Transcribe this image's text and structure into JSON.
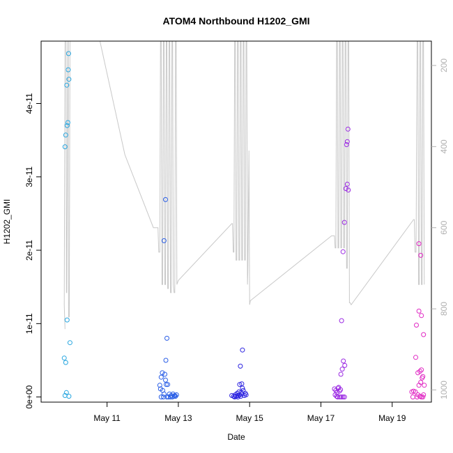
{
  "chart_data": {
    "type": "scatter",
    "title": "ATOM4 Northbound H1202_GMI",
    "xlabel": "Date",
    "ylabel": "H1202_GMI",
    "x_ticks": [
      "May 11",
      "May 13",
      "May 15",
      "May 17",
      "May 19"
    ],
    "x_tick_days": [
      11,
      13,
      15,
      17,
      19
    ],
    "xlim": [
      9.15,
      20.1
    ],
    "ylim": [
      -7e-13,
      4.85e-11
    ],
    "y_ticks": [
      0,
      1e-11,
      2e-11,
      3e-11,
      4e-11
    ],
    "y_tick_labels": [
      "0e+00",
      "1e-11",
      "2e-11",
      "3e-11",
      "4e-11"
    ],
    "y2_lim": [
      1030,
      140
    ],
    "y2_ticks": [
      200,
      400,
      600,
      800,
      1000
    ],
    "y2_tick_labels": [
      "200",
      "400",
      "600",
      "800",
      "1000"
    ],
    "line_color": "#c8c8c8",
    "grid": false,
    "series": [
      {
        "color": "#29a7e0",
        "points": [
          [
            9.82,
            2e-13
          ],
          [
            9.86,
            6e-13
          ],
          [
            9.93,
            1e-13
          ],
          [
            9.8,
            5.3e-12
          ],
          [
            9.84,
            4.7e-12
          ],
          [
            9.88,
            1.05e-11
          ],
          [
            9.96,
            7.4e-12
          ],
          [
            9.82,
            3.41e-11
          ],
          [
            9.84,
            3.57e-11
          ],
          [
            9.88,
            3.7e-11
          ],
          [
            9.9,
            3.74e-11
          ],
          [
            9.87,
            4.25e-11
          ],
          [
            9.93,
            4.33e-11
          ],
          [
            9.91,
            4.46e-11
          ],
          [
            9.92,
            4.68e-11
          ]
        ]
      },
      {
        "color": "#2a5ee6",
        "points": [
          [
            12.48,
            1.6e-12
          ],
          [
            12.52,
            2.7e-12
          ],
          [
            12.55,
            3.3e-12
          ],
          [
            12.62,
            3.1e-12
          ],
          [
            12.64,
            2.3e-12
          ],
          [
            12.5,
            1.1e-12
          ],
          [
            12.56,
            9e-13
          ],
          [
            12.6,
            4e-13
          ],
          [
            12.66,
            1.7e-12
          ],
          [
            12.7,
            1.7e-12
          ],
          [
            12.75,
            4e-13
          ],
          [
            12.8,
            2e-13
          ],
          [
            12.85,
            4e-13
          ],
          [
            12.9,
            2e-13
          ],
          [
            12.52,
            0.0
          ],
          [
            12.58,
            0.0
          ],
          [
            12.68,
            0.0
          ],
          [
            12.72,
            0.0
          ],
          [
            12.78,
            0.0
          ],
          [
            12.83,
            0.0
          ],
          [
            12.88,
            1e-13
          ],
          [
            12.92,
            1e-13
          ],
          [
            12.65,
            5e-12
          ],
          [
            12.68,
            8e-12
          ],
          [
            12.6,
            2.13e-11
          ],
          [
            12.64,
            2.69e-11
          ],
          [
            12.95,
            3e-13
          ]
        ]
      },
      {
        "color": "#2b22e0",
        "points": [
          [
            14.5,
            2e-13
          ],
          [
            14.55,
            1e-13
          ],
          [
            14.6,
            3e-13
          ],
          [
            14.62,
            1e-13
          ],
          [
            14.65,
            5e-13
          ],
          [
            14.68,
            2e-13
          ],
          [
            14.7,
            7e-13
          ],
          [
            14.72,
            3e-13
          ],
          [
            14.75,
            1e-13
          ],
          [
            14.78,
            4e-13
          ],
          [
            14.8,
            1.2e-12
          ],
          [
            14.72,
            1.7e-12
          ],
          [
            14.76,
            6e-13
          ],
          [
            14.82,
            9e-13
          ],
          [
            14.58,
            0.0
          ],
          [
            14.67,
            0.0
          ],
          [
            14.85,
            2e-13
          ],
          [
            14.88,
            5e-13
          ],
          [
            14.74,
            4.2e-12
          ],
          [
            14.78,
            1.8e-12
          ],
          [
            14.8,
            6.4e-12
          ],
          [
            14.9,
            3e-13
          ]
        ]
      },
      {
        "color": "#9b2ae3",
        "points": [
          [
            17.38,
            1.1e-12
          ],
          [
            17.42,
            9e-13
          ],
          [
            17.45,
            6e-13
          ],
          [
            17.48,
            1.2e-12
          ],
          [
            17.5,
            1.3e-12
          ],
          [
            17.52,
            8e-13
          ],
          [
            17.55,
            1e-12
          ],
          [
            17.4,
            3e-13
          ],
          [
            17.44,
            1e-13
          ],
          [
            17.47,
            0.0
          ],
          [
            17.53,
            0.0
          ],
          [
            17.58,
            0.0
          ],
          [
            17.62,
            0.0
          ],
          [
            17.66,
            0.0
          ],
          [
            17.56,
            3.1e-12
          ],
          [
            17.6,
            3.8e-12
          ],
          [
            17.63,
            4.9e-12
          ],
          [
            17.67,
            4.3e-12
          ],
          [
            17.58,
            1.04e-11
          ],
          [
            17.62,
            1.98e-11
          ],
          [
            17.66,
            2.38e-11
          ],
          [
            17.7,
            2.84e-11
          ],
          [
            17.74,
            2.9e-11
          ],
          [
            17.77,
            2.82e-11
          ],
          [
            17.72,
            3.44e-11
          ],
          [
            17.74,
            3.48e-11
          ],
          [
            17.76,
            3.65e-11
          ]
        ]
      },
      {
        "color": "#e028c3",
        "points": [
          [
            19.55,
            7e-13
          ],
          [
            19.6,
            8e-13
          ],
          [
            19.65,
            7e-13
          ],
          [
            19.58,
            0.0
          ],
          [
            19.7,
            0.0
          ],
          [
            19.72,
            3e-13
          ],
          [
            19.78,
            1e-13
          ],
          [
            19.82,
            0.0
          ],
          [
            19.86,
            0.0
          ],
          [
            19.88,
            3e-13
          ],
          [
            19.75,
            1.6e-12
          ],
          [
            19.8,
            2e-12
          ],
          [
            19.84,
            2.6e-12
          ],
          [
            19.72,
            3.3e-12
          ],
          [
            19.78,
            3.5e-12
          ],
          [
            19.82,
            3.7e-12
          ],
          [
            19.86,
            2.8e-12
          ],
          [
            19.9,
            1.6e-12
          ],
          [
            19.66,
            5.4e-12
          ],
          [
            19.68,
            9.8e-12
          ],
          [
            19.75,
            1.17e-11
          ],
          [
            19.82,
            1.11e-11
          ],
          [
            19.88,
            8.5e-12
          ],
          [
            19.75,
            2.09e-11
          ],
          [
            19.8,
            1.93e-11
          ]
        ]
      }
    ],
    "pressure_line": [
      [
        9.82,
        850
      ],
      [
        9.8,
        790
      ],
      [
        9.82,
        140
      ],
      [
        9.85,
        140
      ],
      [
        9.86,
        760
      ],
      [
        9.87,
        760
      ],
      [
        9.9,
        140
      ],
      [
        9.91,
        140
      ],
      [
        9.92,
        820
      ],
      [
        9.94,
        820
      ],
      [
        9.96,
        140
      ],
      [
        10.3,
        140
      ],
      [
        10.8,
        140
      ],
      [
        11.5,
        420
      ],
      [
        12.3,
        600
      ],
      [
        12.43,
        600
      ],
      [
        12.45,
        660
      ],
      [
        12.48,
        660
      ],
      [
        12.5,
        140
      ],
      [
        12.52,
        140
      ],
      [
        12.54,
        740
      ],
      [
        12.56,
        740
      ],
      [
        12.58,
        140
      ],
      [
        12.6,
        140
      ],
      [
        12.62,
        740
      ],
      [
        12.64,
        740
      ],
      [
        12.66,
        140
      ],
      [
        12.68,
        140
      ],
      [
        12.7,
        750
      ],
      [
        12.72,
        750
      ],
      [
        12.74,
        140
      ],
      [
        12.76,
        140
      ],
      [
        12.78,
        760
      ],
      [
        12.8,
        760
      ],
      [
        12.82,
        140
      ],
      [
        12.84,
        140
      ],
      [
        12.86,
        740
      ],
      [
        12.88,
        760
      ],
      [
        12.9,
        760
      ],
      [
        12.92,
        140
      ],
      [
        12.94,
        140
      ],
      [
        12.96,
        740
      ],
      [
        13.0,
        730
      ],
      [
        14.5,
        590
      ],
      [
        14.52,
        590
      ],
      [
        14.54,
        660
      ],
      [
        14.56,
        660
      ],
      [
        14.58,
        140
      ],
      [
        14.6,
        140
      ],
      [
        14.62,
        680
      ],
      [
        14.64,
        680
      ],
      [
        14.66,
        140
      ],
      [
        14.68,
        140
      ],
      [
        14.7,
        680
      ],
      [
        14.72,
        680
      ],
      [
        14.74,
        140
      ],
      [
        14.76,
        140
      ],
      [
        14.78,
        680
      ],
      [
        14.8,
        680
      ],
      [
        14.82,
        140
      ],
      [
        14.84,
        140
      ],
      [
        14.86,
        680
      ],
      [
        14.88,
        680
      ],
      [
        14.9,
        140
      ],
      [
        14.92,
        140
      ],
      [
        14.94,
        740
      ],
      [
        14.95,
        710
      ],
      [
        14.98,
        410
      ],
      [
        15.0,
        790
      ],
      [
        15.02,
        780
      ],
      [
        17.3,
        620
      ],
      [
        17.38,
        620
      ],
      [
        17.4,
        650
      ],
      [
        17.42,
        650
      ],
      [
        17.44,
        140
      ],
      [
        17.46,
        140
      ],
      [
        17.48,
        650
      ],
      [
        17.5,
        650
      ],
      [
        17.52,
        140
      ],
      [
        17.54,
        140
      ],
      [
        17.56,
        650
      ],
      [
        17.58,
        650
      ],
      [
        17.6,
        140
      ],
      [
        17.62,
        140
      ],
      [
        17.64,
        650
      ],
      [
        17.66,
        650
      ],
      [
        17.68,
        140
      ],
      [
        17.7,
        140
      ],
      [
        17.72,
        700
      ],
      [
        17.74,
        700
      ],
      [
        17.76,
        140
      ],
      [
        17.78,
        140
      ],
      [
        17.8,
        785
      ],
      [
        17.82,
        785
      ],
      [
        17.85,
        790
      ],
      [
        19.6,
        580
      ],
      [
        19.62,
        580
      ],
      [
        19.64,
        660
      ],
      [
        19.67,
        660
      ],
      [
        19.7,
        140
      ],
      [
        19.72,
        140
      ],
      [
        19.74,
        740
      ],
      [
        19.76,
        740
      ],
      [
        19.78,
        140
      ],
      [
        19.8,
        140
      ],
      [
        19.82,
        740
      ],
      [
        19.84,
        740
      ],
      [
        19.86,
        140
      ],
      [
        19.88,
        140
      ],
      [
        19.9,
        740
      ]
    ]
  }
}
